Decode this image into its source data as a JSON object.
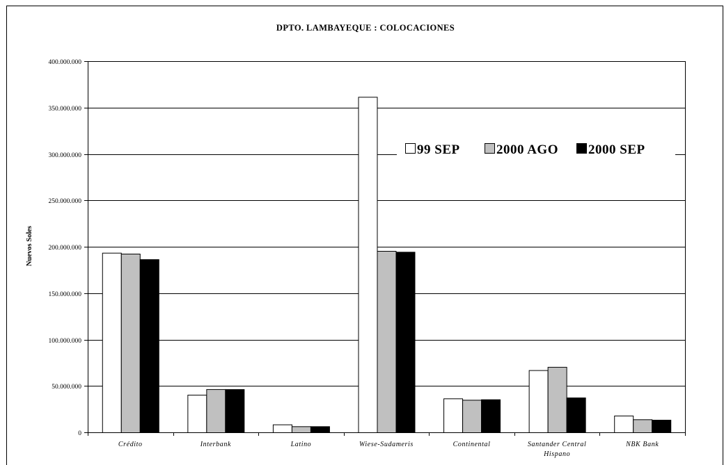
{
  "chart_data": {
    "type": "bar",
    "title": "DPTO.  LAMBAYEQUE :   COLOCACIONES",
    "xlabel": "",
    "ylabel": "Nuevos Soles",
    "ylim": [
      0,
      400000000
    ],
    "yticks": [
      0,
      50000000,
      100000000,
      150000000,
      200000000,
      250000000,
      300000000,
      350000000,
      400000000
    ],
    "ytick_labels": [
      "0",
      "50.000.000",
      "100.000.000",
      "150.000.000",
      "200.000.000",
      "250.000.000",
      "300.000.000",
      "350.000.000",
      "400.000.000"
    ],
    "grid": true,
    "legend_position": "upper-right",
    "categories": [
      [
        "Crédito"
      ],
      [
        "Interbank"
      ],
      [
        "Latino"
      ],
      [
        "Wiese-Sudameris"
      ],
      [
        "Continental"
      ],
      [
        "Santander Central",
        "Hispano"
      ],
      [
        "NBK Bank"
      ]
    ],
    "series": [
      {
        "name": "99 SEP",
        "color": "#ffffff",
        "values": [
          193500000,
          40500000,
          8500000,
          361500000,
          36500000,
          67000000,
          18000000
        ]
      },
      {
        "name": "2000 AGO",
        "color": "#c0c0c0",
        "values": [
          192500000,
          46500000,
          6500000,
          195500000,
          35000000,
          70500000,
          14000000
        ]
      },
      {
        "name": "2000 SEP",
        "color": "#000000",
        "values": [
          186500000,
          46500000,
          6500000,
          194500000,
          35500000,
          37500000,
          13500000
        ]
      }
    ]
  }
}
